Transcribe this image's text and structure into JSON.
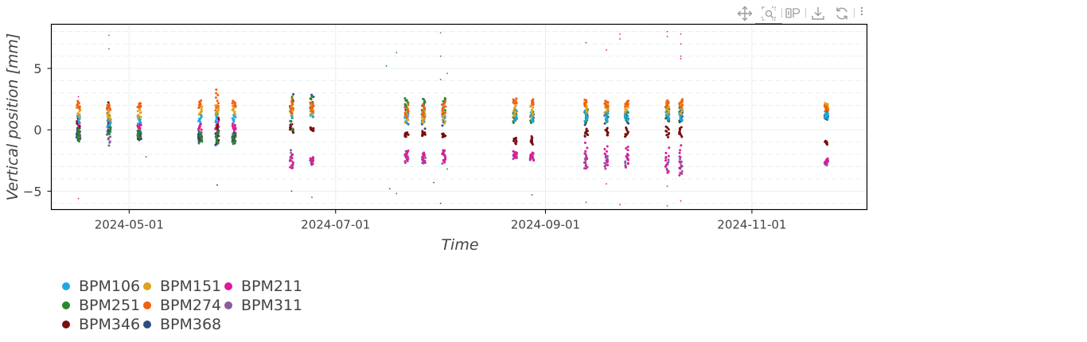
{
  "toolbar": {
    "tools": [
      {
        "name": "pan",
        "icon": "pan-icon"
      },
      {
        "name": "box-zoom",
        "icon": "box-zoom-icon",
        "active": true
      },
      {
        "name": "hover",
        "icon": "hover-icon"
      },
      {
        "name": "save",
        "icon": "save-icon"
      },
      {
        "name": "reset",
        "icon": "reset-icon"
      },
      {
        "name": "more",
        "icon": "more-icon"
      }
    ]
  },
  "colors": {
    "BPM106": "#1fa8e0",
    "BPM151": "#e0a21b",
    "BPM211": "#e0189a",
    "BPM251": "#2a8a2a",
    "BPM274": "#f26012",
    "BPM311": "#8a5c9e",
    "BPM346": "#7a0d0d",
    "BPM368": "#2e4d7f",
    "grid": "#e6f0ef",
    "axis": "#000000",
    "text": "#444444"
  },
  "chart_data": {
    "type": "scatter",
    "xlabel": "Time",
    "ylabel": "Vertical position [mm]",
    "xlim": [
      "2024-04-08",
      "2024-12-05"
    ],
    "ylim": [
      -6.5,
      8.6
    ],
    "x_ticks": [
      "2024-05-01",
      "2024-07-01",
      "2024-09-01",
      "2024-11-01"
    ],
    "y_ticks": [
      -5,
      0,
      5
    ],
    "y_tick_labels": [
      "−5",
      "0",
      "5"
    ],
    "grid": true,
    "legend_position": "bottom-left",
    "legend": [
      "BPM106",
      "BPM151",
      "BPM211",
      "BPM251",
      "BPM274",
      "BPM311",
      "BPM346",
      "BPM368"
    ],
    "sessions": [
      {
        "date": "2024-04-16",
        "BPM106": [
          0.5,
          1.3
        ],
        "BPM151": [
          1.0,
          2.0
        ],
        "BPM211": [
          0.3,
          0.8
        ],
        "BPM251": [
          -1.0,
          0.1
        ],
        "BPM274": [
          1.7,
          2.4
        ],
        "BPM311": [
          -0.8,
          0.3
        ],
        "BPM346": [
          -0.6,
          1.2
        ],
        "BPM368": [
          -0.9,
          0.2
        ]
      },
      {
        "date": "2024-04-25",
        "BPM106": [
          0.2,
          1.0
        ],
        "BPM151": [
          0.8,
          1.6
        ],
        "BPM211": [
          0.2,
          0.9
        ],
        "BPM251": [
          -0.5,
          0.9
        ],
        "BPM274": [
          1.6,
          2.1
        ],
        "BPM311": [
          -1.3,
          0.0
        ],
        "BPM346": [
          -0.1,
          2.4
        ],
        "BPM368": [
          -0.4,
          0.6
        ]
      },
      {
        "date": "2024-05-04",
        "BPM106": [
          0.5,
          1.2
        ],
        "BPM151": [
          0.9,
          1.8
        ],
        "BPM211": [
          0.1,
          0.6
        ],
        "BPM251": [
          -0.7,
          0.0
        ],
        "BPM274": [
          1.8,
          2.2
        ],
        "BPM311": [
          -0.8,
          0.1
        ],
        "BPM346": [
          -0.8,
          -0.4
        ],
        "BPM368": [
          -0.9,
          0.0
        ]
      },
      {
        "date": "2024-05-22",
        "BPM106": [
          0.6,
          1.3
        ],
        "BPM151": [
          1.2,
          2.0
        ],
        "BPM211": [
          0.0,
          0.5
        ],
        "BPM251": [
          -1.1,
          -0.1
        ],
        "BPM274": [
          1.8,
          2.4
        ],
        "BPM311": [
          -1.0,
          0.0
        ],
        "BPM346": [
          -0.9,
          -0.4
        ],
        "BPM368": [
          -1.0,
          -0.2
        ]
      },
      {
        "date": "2024-05-27",
        "BPM106": [
          0.5,
          1.5
        ],
        "BPM151": [
          1.2,
          2.1
        ],
        "BPM211": [
          0.0,
          0.8
        ],
        "BPM251": [
          -1.2,
          0.0
        ],
        "BPM274": [
          1.5,
          3.4
        ],
        "BPM311": [
          -1.3,
          0.3
        ],
        "BPM346": [
          -1.2,
          1.2
        ],
        "BPM368": [
          -1.3,
          0.0
        ]
      },
      {
        "date": "2024-06-01",
        "BPM106": [
          0.6,
          1.3
        ],
        "BPM151": [
          1.3,
          2.0
        ],
        "BPM211": [
          0.0,
          0.5
        ],
        "BPM251": [
          -1.2,
          -0.3
        ],
        "BPM274": [
          1.9,
          2.4
        ],
        "BPM311": [
          -1.0,
          -0.1
        ],
        "BPM346": [
          -1.1,
          -0.4
        ],
        "BPM368": [
          -1.0,
          -0.2
        ]
      },
      {
        "date": "2024-06-18",
        "BPM106": [
          1.0,
          2.0
        ],
        "BPM151": [
          1.2,
          2.1
        ],
        "BPM211": [
          -3.2,
          -2.0
        ],
        "BPM251": [
          -0.3,
          3.0
        ],
        "BPM274": [
          1.3,
          2.6
        ],
        "BPM311": [
          -3.1,
          -1.6
        ],
        "BPM346": [
          -0.3,
          0.5
        ],
        "BPM368": [
          -0.2,
          3.2
        ]
      },
      {
        "date": "2024-06-24",
        "BPM106": [
          1.0,
          2.0
        ],
        "BPM151": [
          1.2,
          2.2
        ],
        "BPM211": [
          -2.8,
          -2.2
        ],
        "BPM251": [
          1.0,
          2.8
        ],
        "BPM274": [
          1.5,
          2.3
        ],
        "BPM311": [
          -2.9,
          -2.2
        ],
        "BPM346": [
          -0.1,
          0.2
        ],
        "BPM368": [
          1.3,
          2.9
        ]
      },
      {
        "date": "2024-07-22",
        "BPM106": [
          0.5,
          1.5
        ],
        "BPM151": [
          0.6,
          1.6
        ],
        "BPM211": [
          -2.6,
          -1.6
        ],
        "BPM251": [
          1.3,
          2.7
        ],
        "BPM274": [
          1.0,
          2.2
        ],
        "BPM311": [
          -2.7,
          -1.7
        ],
        "BPM346": [
          -0.6,
          -0.2
        ],
        "BPM368": [
          0.3,
          2.5
        ]
      },
      {
        "date": "2024-07-27",
        "BPM106": [
          0.5,
          1.6
        ],
        "BPM151": [
          0.5,
          1.5
        ],
        "BPM211": [
          -2.7,
          -1.8
        ],
        "BPM251": [
          1.2,
          2.6
        ],
        "BPM274": [
          1.0,
          2.1
        ],
        "BPM311": [
          -2.8,
          -1.9
        ],
        "BPM346": [
          -0.5,
          -0.1
        ],
        "BPM368": [
          0.0,
          2.6
        ]
      },
      {
        "date": "2024-08-02",
        "BPM106": [
          0.6,
          2.0
        ],
        "BPM151": [
          0.5,
          2.0
        ],
        "BPM211": [
          -2.7,
          -1.6
        ],
        "BPM251": [
          1.2,
          2.7
        ],
        "BPM274": [
          1.2,
          2.4
        ],
        "BPM311": [
          -2.8,
          -1.6
        ],
        "BPM346": [
          -0.6,
          -0.3
        ],
        "BPM368": [
          0.2,
          2.7
        ]
      },
      {
        "date": "2024-08-23",
        "BPM106": [
          0.7,
          1.6
        ],
        "BPM151": [
          1.0,
          2.2
        ],
        "BPM211": [
          -2.3,
          -1.7
        ],
        "BPM251": [
          0.6,
          1.8
        ],
        "BPM274": [
          2.1,
          2.6
        ],
        "BPM311": [
          -2.4,
          -1.9
        ],
        "BPM346": [
          -1.2,
          -0.6
        ],
        "BPM368": [
          0.5,
          1.6
        ]
      },
      {
        "date": "2024-08-28",
        "BPM106": [
          0.6,
          1.5
        ],
        "BPM151": [
          1.0,
          2.1
        ],
        "BPM211": [
          -2.5,
          -1.8
        ],
        "BPM251": [
          0.5,
          1.6
        ],
        "BPM274": [
          2.0,
          2.5
        ],
        "BPM311": [
          -2.5,
          -1.9
        ],
        "BPM346": [
          -1.2,
          -0.5
        ],
        "BPM368": [
          0.6,
          1.5
        ]
      },
      {
        "date": "2024-09-13",
        "BPM106": [
          0.7,
          1.6
        ],
        "BPM151": [
          1.4,
          2.3
        ],
        "BPM211": [
          -3.3,
          -1.0
        ],
        "BPM251": [
          0.6,
          1.7
        ],
        "BPM274": [
          1.9,
          2.5
        ],
        "BPM311": [
          -3.2,
          -1.8
        ],
        "BPM346": [
          -0.6,
          0.1
        ],
        "BPM368": [
          0.4,
          1.6
        ]
      },
      {
        "date": "2024-09-19",
        "BPM106": [
          0.6,
          1.6
        ],
        "BPM151": [
          1.4,
          2.3
        ],
        "BPM211": [
          -3.1,
          -1.3
        ],
        "BPM251": [
          0.6,
          1.7
        ],
        "BPM274": [
          1.8,
          2.4
        ],
        "BPM311": [
          -3.2,
          -2.0
        ],
        "BPM346": [
          -0.5,
          0.2
        ],
        "BPM368": [
          0.5,
          1.6
        ]
      },
      {
        "date": "2024-09-25",
        "BPM106": [
          0.7,
          1.6
        ],
        "BPM151": [
          1.4,
          2.2
        ],
        "BPM211": [
          -3.0,
          -1.2
        ],
        "BPM251": [
          0.7,
          1.7
        ],
        "BPM274": [
          1.9,
          2.4
        ],
        "BPM311": [
          -3.1,
          -2.0
        ],
        "BPM346": [
          -0.6,
          0.2
        ],
        "BPM368": [
          0.5,
          1.6
        ]
      },
      {
        "date": "2024-10-07",
        "BPM106": [
          0.8,
          1.7
        ],
        "BPM151": [
          1.3,
          2.3
        ],
        "BPM211": [
          -3.7,
          -1.4
        ],
        "BPM251": [
          0.7,
          1.9
        ],
        "BPM274": [
          1.8,
          2.4
        ],
        "BPM311": [
          -3.5,
          -2.2
        ],
        "BPM346": [
          -0.6,
          0.3
        ],
        "BPM368": [
          0.6,
          1.8
        ]
      },
      {
        "date": "2024-10-11",
        "BPM106": [
          0.7,
          1.9
        ],
        "BPM151": [
          1.2,
          2.4
        ],
        "BPM211": [
          -3.9,
          -1.2
        ],
        "BPM251": [
          0.6,
          2.0
        ],
        "BPM274": [
          1.8,
          2.5
        ],
        "BPM311": [
          -3.6,
          -2.2
        ],
        "BPM346": [
          -0.6,
          0.3
        ],
        "BPM368": [
          0.5,
          1.9
        ]
      },
      {
        "date": "2024-11-23",
        "BPM106": [
          0.9,
          1.4
        ],
        "BPM151": [
          1.8,
          2.2
        ],
        "BPM211": [
          -2.8,
          -2.3
        ],
        "BPM251": [
          1.2,
          1.9
        ],
        "BPM274": [
          1.5,
          2.0
        ],
        "BPM311": [
          -2.9,
          -2.5
        ],
        "BPM346": [
          -1.2,
          -0.9
        ],
        "BPM368": [
          0.8,
          1.3
        ]
      }
    ],
    "outliers": [
      {
        "date": "2024-04-16",
        "y": -5.6,
        "series": "BPM211"
      },
      {
        "date": "2024-04-16",
        "y": 2.7,
        "series": "BPM211"
      },
      {
        "date": "2024-04-25",
        "y": 7.7,
        "series": "BPM311"
      },
      {
        "date": "2024-04-25",
        "y": 6.6,
        "series": "BPM251"
      },
      {
        "date": "2024-05-06",
        "y": -2.2,
        "series": "BPM368"
      },
      {
        "date": "2024-05-27",
        "y": -4.5,
        "series": "BPM346"
      },
      {
        "date": "2024-06-18",
        "y": -5.0,
        "series": "BPM368"
      },
      {
        "date": "2024-06-24",
        "y": -5.5,
        "series": "BPM211"
      },
      {
        "date": "2024-07-16",
        "y": 5.2,
        "series": "BPM251"
      },
      {
        "date": "2024-07-17",
        "y": -4.8,
        "series": "BPM368"
      },
      {
        "date": "2024-07-19",
        "y": 6.3,
        "series": "BPM251"
      },
      {
        "date": "2024-07-19",
        "y": -5.2,
        "series": "BPM251"
      },
      {
        "date": "2024-07-30",
        "y": -4.3,
        "series": "BPM368"
      },
      {
        "date": "2024-08-01",
        "y": 6.0,
        "series": "BPM251"
      },
      {
        "date": "2024-08-01",
        "y": 7.9,
        "series": "BPM311"
      },
      {
        "date": "2024-08-01",
        "y": -6.0,
        "series": "BPM368"
      },
      {
        "date": "2024-08-01",
        "y": 4.1,
        "series": "BPM251"
      },
      {
        "date": "2024-08-03",
        "y": 4.6,
        "series": "BPM251"
      },
      {
        "date": "2024-08-03",
        "y": -3.2,
        "series": "BPM251"
      },
      {
        "date": "2024-08-28",
        "y": -5.3,
        "series": "BPM368"
      },
      {
        "date": "2024-09-13",
        "y": 7.1,
        "series": "BPM211"
      },
      {
        "date": "2024-09-13",
        "y": -5.9,
        "series": "BPM211"
      },
      {
        "date": "2024-09-19",
        "y": 6.5,
        "series": "BPM211"
      },
      {
        "date": "2024-09-19",
        "y": -4.4,
        "series": "BPM211"
      },
      {
        "date": "2024-09-23",
        "y": 7.8,
        "series": "BPM211"
      },
      {
        "date": "2024-09-23",
        "y": 7.4,
        "series": "BPM211"
      },
      {
        "date": "2024-09-23",
        "y": -6.1,
        "series": "BPM211"
      },
      {
        "date": "2024-10-07",
        "y": 8.0,
        "series": "BPM211"
      },
      {
        "date": "2024-10-07",
        "y": 7.6,
        "series": "BPM211"
      },
      {
        "date": "2024-10-07",
        "y": -4.6,
        "series": "BPM211"
      },
      {
        "date": "2024-10-07",
        "y": -6.2,
        "series": "BPM211"
      },
      {
        "date": "2024-10-11",
        "y": 7.8,
        "series": "BPM211"
      },
      {
        "date": "2024-10-11",
        "y": 7.0,
        "series": "BPM211"
      },
      {
        "date": "2024-10-11",
        "y": 6.0,
        "series": "BPM211"
      },
      {
        "date": "2024-10-11",
        "y": 5.8,
        "series": "BPM211"
      },
      {
        "date": "2024-10-11",
        "y": -5.8,
        "series": "BPM211"
      }
    ]
  }
}
